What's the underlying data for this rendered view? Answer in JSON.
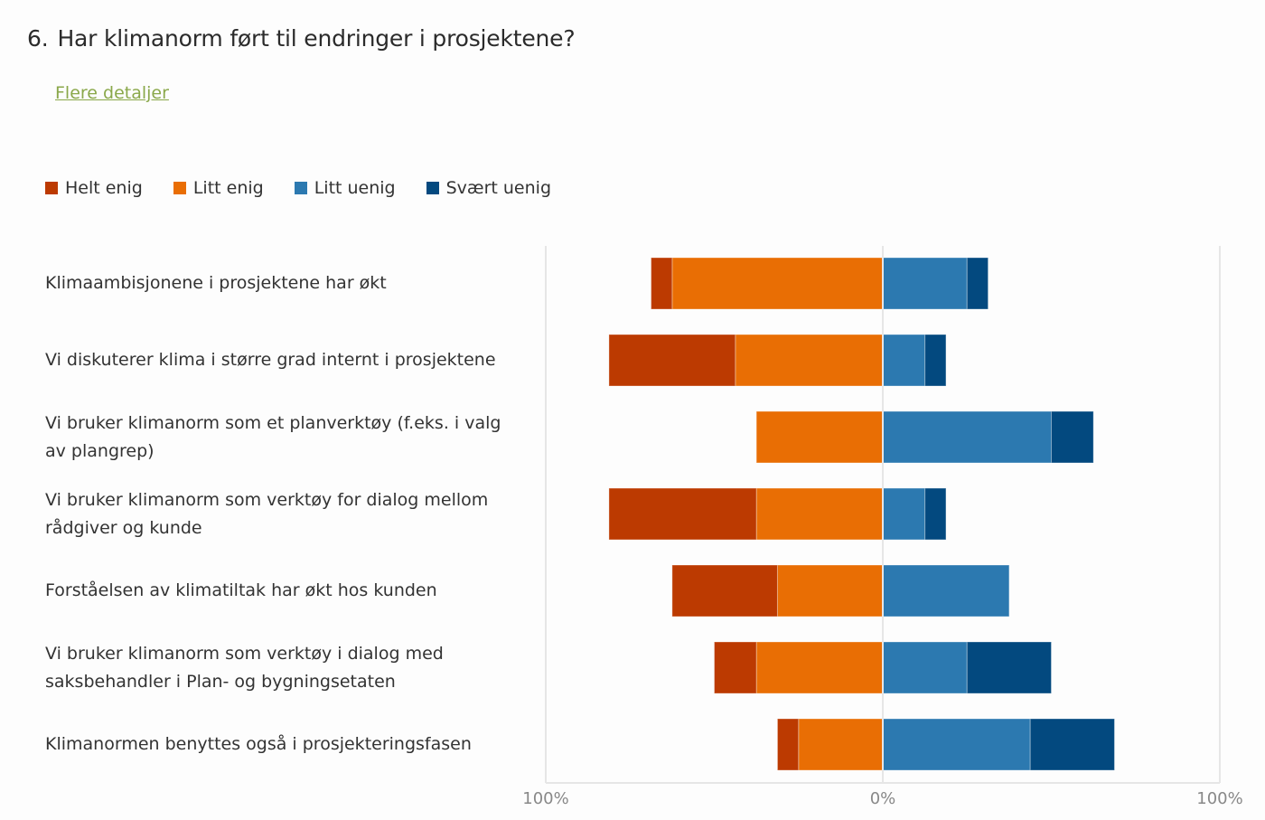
{
  "question": {
    "number": "6.",
    "title": "Har klimanorm ført til endringer i prosjektene?",
    "details_link": "Flere detaljer"
  },
  "colors": {
    "helt_enig": "#bc3a01",
    "litt_enig": "#e96e04",
    "litt_uenig": "#2c79b0",
    "svaert_uenig": "#03497f",
    "link": "#8aa84a"
  },
  "chart_data": {
    "type": "bar",
    "orientation": "horizontal-diverging-stacked",
    "title": "Har klimanorm ført til endringer i prosjektene?",
    "xlabel": "",
    "ylabel": "",
    "xlim": [
      -100,
      100
    ],
    "x_ticks": [
      "100%",
      "0%",
      "100%"
    ],
    "legend_position": "top-left",
    "grid": false,
    "categories": [
      "Klimaambisjonene i prosjektene har økt",
      "Vi diskuterer klima i større grad internt i prosjektene",
      "Vi bruker klimanorm som et planverktøy (f.eks. i valg av plangrep)",
      "Vi bruker klimanorm som verktøy for dialog mellom rådgiver og kunde",
      "Forståelsen av klimatiltak har økt hos kunden",
      "Vi bruker klimanorm som verktøy i dialog med saksbehandler i Plan- og bygningsetaten",
      "Klimanormen benyttes også i prosjekteringsfasen"
    ],
    "series": [
      {
        "name": "Helt enig",
        "side": "left",
        "values": [
          6.25,
          37.5,
          0,
          43.75,
          31.25,
          12.5,
          6.25
        ]
      },
      {
        "name": "Litt enig",
        "side": "left",
        "values": [
          62.5,
          43.75,
          37.5,
          37.5,
          31.25,
          37.5,
          25
        ]
      },
      {
        "name": "Litt uenig",
        "side": "right",
        "values": [
          25,
          12.5,
          50,
          12.5,
          37.5,
          25,
          43.75
        ]
      },
      {
        "name": "Svært uenig",
        "side": "right",
        "values": [
          6.25,
          6.25,
          12.5,
          6.25,
          0,
          25,
          25
        ]
      }
    ]
  }
}
